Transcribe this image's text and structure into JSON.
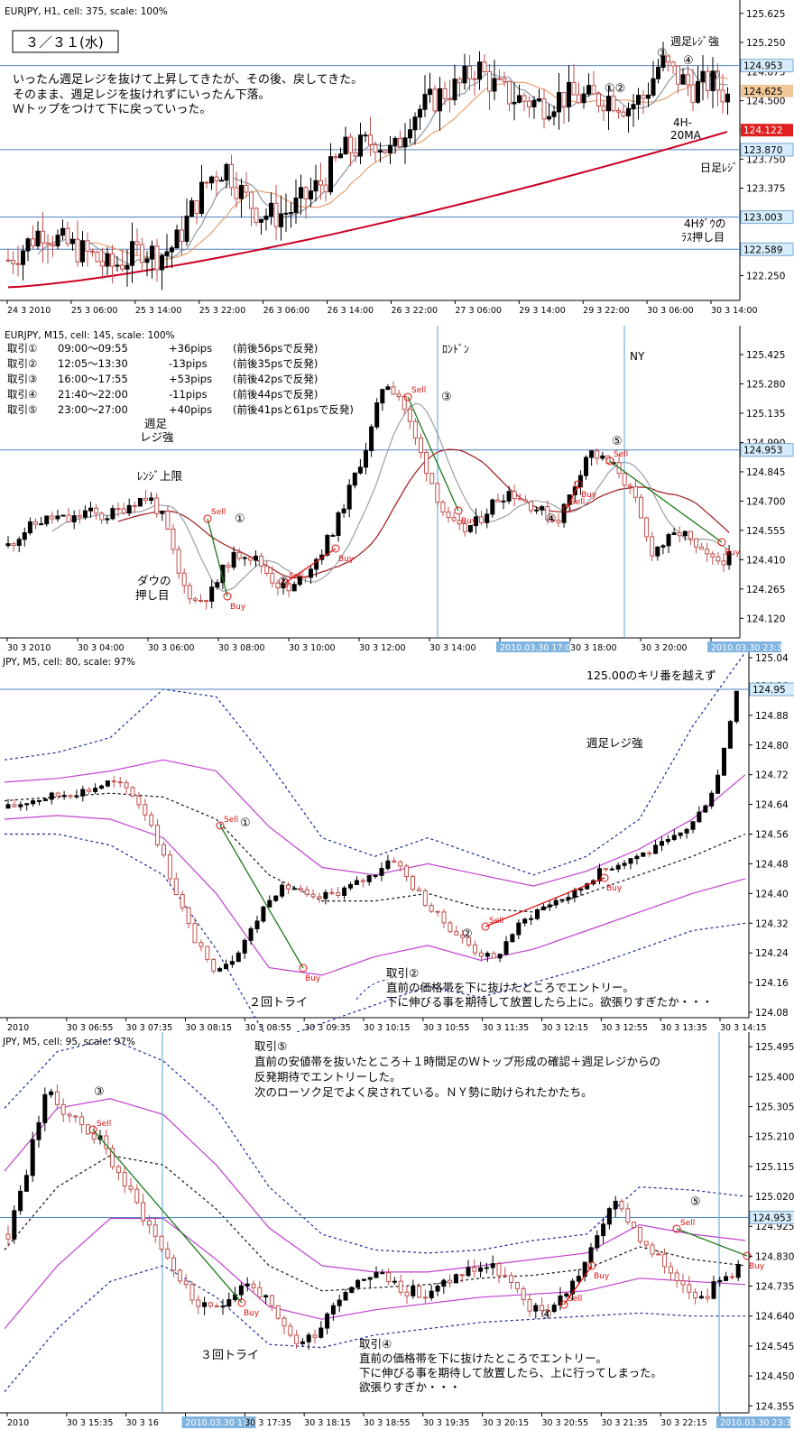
{
  "colors": {
    "bull": "#000000",
    "bear": "#c0504d",
    "bearBody": "#ffffff",
    "hline": "#4f81bd",
    "red_line": "#cc0022",
    "orange_line": "#e8a070",
    "gray_line": "#8a96a8",
    "dark_red": "#a01818",
    "magenta": "#c040d0",
    "navy": "#1a2a9a",
    "black_dash": "#111111",
    "green": "#1b7a1b",
    "trade_red": "#dd1111",
    "axis_hi": "#e02020",
    "axis_blue": "#d6ecfa"
  },
  "charts": [
    {
      "header": "EURJPY, H1, cell: 375, scale: 100%",
      "date_box": "３／３１(水)",
      "notes": [
        "いったん週足レジを抜けて上昇してきたが、その後、戻してきた。",
        "そのまま、週足レジを抜けれずにいったん下落。",
        "Ｗトップをつけて下に戻っていった。"
      ],
      "labels": [
        {
          "t": "週足ﾚｼﾞ強"
        },
        {
          "t": "4H-"
        },
        {
          "t": "20MA"
        },
        {
          "t": "日足ﾚｼﾞ"
        },
        {
          "t": "4Hﾀﾞｳの"
        },
        {
          "t": "ﾗｽ押し目"
        },
        {
          "t": "①②"
        },
        {
          "t": "③"
        },
        {
          "t": "④"
        },
        {
          "t": "⑤"
        }
      ],
      "chart_data": {
        "type": "candlestick",
        "ylim": [
          122.0,
          125.75
        ],
        "y_ticks": [
          "125.625",
          "125.250",
          "124.875",
          "124.500",
          "124.125",
          "123.750",
          "123.375",
          "123.000",
          "122.625",
          "122.250"
        ],
        "x_ticks": [
          "24 3 2010",
          "25 3 06:00",
          "25 3 14:00",
          "25 3 22:00",
          "26 3 06:00",
          "26 3 14:00",
          "26 3 22:00",
          "27 3 06:00",
          "29 3 14:00",
          "29 3 22:00",
          "30 3 06:00",
          "30 3 14:00"
        ],
        "levels": [
          "124.953",
          "123.870",
          "123.003",
          "122.589"
        ],
        "price_tags": [
          "124.625",
          "124.122"
        ],
        "path": [
          122.45,
          122.62,
          122.85,
          122.7,
          122.6,
          122.5,
          122.35,
          122.45,
          122.6,
          122.5,
          122.65,
          123.1,
          123.5,
          123.65,
          123.3,
          123.05,
          123.02,
          123.1,
          123.3,
          123.5,
          123.85,
          123.9,
          124.0,
          123.8,
          124.3,
          124.45,
          124.6,
          124.7,
          124.95,
          124.7,
          124.55,
          124.5,
          124.45,
          124.55,
          124.55,
          124.52,
          124.55,
          124.42,
          124.55,
          125.0,
          124.8,
          124.65,
          124.75,
          124.55
        ]
      }
    },
    {
      "header": "EURJPY, M15, cell: 145, scale: 100%",
      "trades": [
        {
          "name": "取引①",
          "time": "09:00～09:55",
          "pips": "+36pips",
          "note": "(前後56psで反発)"
        },
        {
          "name": "取引②",
          "time": "12:05～13:30",
          "pips": "-13pips",
          "note": "(前後35psで反発)"
        },
        {
          "name": "取引③",
          "time": "16:00～17:55",
          "pips": "+53pips",
          "note": "(前後42psで反発)"
        },
        {
          "name": "取引④",
          "time": "21:40～22:00",
          "pips": "-11pips",
          "note": "(前後44psで反発)"
        },
        {
          "name": "取引⑤",
          "time": "23:00～27:00",
          "pips": "+40pips",
          "note": "(前後41psと61psで反発)"
        }
      ],
      "labels": [
        {
          "t": "ﾛﾝﾄﾞﾝ"
        },
        {
          "t": "NY"
        },
        {
          "t": "週足"
        },
        {
          "t": "レジ強"
        },
        {
          "t": "ﾚﾝｼﾞ上限"
        },
        {
          "t": "ダウの"
        },
        {
          "t": "押し目"
        },
        {
          "t": "①"
        },
        {
          "t": "②"
        },
        {
          "t": "③"
        },
        {
          "t": "④"
        },
        {
          "t": "⑤"
        },
        {
          "t": "Sell"
        },
        {
          "t": "Buy"
        }
      ],
      "chart_data": {
        "type": "candlestick",
        "ylim": [
          124.05,
          125.55
        ],
        "y_ticks": [
          "125.425",
          "125.280",
          "125.135",
          "124.990",
          "124.845",
          "124.700",
          "124.555",
          "124.410",
          "124.265",
          "124.120"
        ],
        "x_ticks": [
          "30 3 2010",
          "30 3 04:00",
          "30 3 06:00",
          "30 3 08:00",
          "30 3 10:00",
          "30 3 12:00",
          "30 3 14:00",
          "2010.03.30 17:00",
          "30 3 18:00",
          "30 3 20:00",
          "2010.03.30 23:30"
        ],
        "levels": [
          "124.953"
        ],
        "path": [
          124.48,
          124.55,
          124.6,
          124.62,
          124.6,
          124.65,
          124.62,
          124.65,
          124.7,
          124.72,
          124.6,
          124.3,
          124.2,
          124.25,
          124.4,
          124.45,
          124.4,
          124.3,
          124.25,
          124.35,
          124.45,
          124.6,
          124.8,
          125.0,
          125.3,
          125.22,
          125.0,
          124.8,
          124.6,
          124.55,
          124.6,
          124.7,
          124.75,
          124.7,
          124.65,
          124.6,
          124.75,
          124.95,
          124.9,
          124.85,
          124.7,
          124.45,
          124.5,
          124.55,
          124.45,
          124.4,
          124.42
        ]
      }
    },
    {
      "header": "JPY, M5, cell: 80, scale: 97%",
      "labels": [
        {
          "t": "125.00のキリ番を越えず"
        },
        {
          "t": "週足レジ強"
        },
        {
          "t": "２回トライ"
        },
        {
          "t": "取引②"
        },
        {
          "t": "直前の価格帯を下に抜けたところでエントリー。"
        },
        {
          "t": "下に伸びる事を期待して放置したら上に。欲張りすぎたか・・・"
        },
        {
          "t": "①"
        },
        {
          "t": "②"
        },
        {
          "t": "Sell"
        },
        {
          "t": "Buy"
        }
      ],
      "chart_data": {
        "type": "candlestick",
        "ylim": [
          124.08,
          125.04
        ],
        "y_ticks": [
          "124.96",
          "124.88",
          "124.80",
          "124.72",
          "124.64",
          "124.56",
          "124.48",
          "124.40",
          "124.32",
          "124.24",
          "124.16",
          "124.08",
          "125.04"
        ],
        "x_ticks": [
          "2010",
          "30 3 06:55",
          "30 3 07:35",
          "30 3 08:15",
          "30 3 08:55",
          "30 3 09:35",
          "30 3 10:15",
          "30 3 10:55",
          "30 3 11:35",
          "30 3 12:15",
          "30 3 12:55",
          "30 3 13:35",
          "30 3 14:15"
        ],
        "levels": [
          "124.95"
        ],
        "path": [
          124.63,
          124.65,
          124.66,
          124.67,
          124.68,
          124.7,
          124.68,
          124.6,
          124.45,
          124.3,
          124.2,
          124.22,
          124.3,
          124.4,
          124.42,
          124.38,
          124.4,
          124.42,
          124.45,
          124.5,
          124.42,
          124.35,
          124.3,
          124.25,
          124.22,
          124.3,
          124.35,
          124.38,
          124.4,
          124.45,
          124.48,
          124.5,
          124.52,
          124.55,
          124.6,
          124.7,
          124.95
        ]
      }
    },
    {
      "header": "JPY, M5, cell: 95, scale: 97%",
      "notes": [
        "取引⑤",
        "直前の安値帯を抜いたところ＋１時間足のＷトップ形成の確認＋週足レジからの",
        "反発期待でエントリーした。",
        "次のローソク足でよく戻されている。ＮＹ勢に助けられたかたち。"
      ],
      "labels": [
        {
          "t": "３回トライ"
        },
        {
          "t": "取引④"
        },
        {
          "t": "直前の価格帯を下に抜けたところでエントリー。"
        },
        {
          "t": "下に伸びる事を期待して放置したら、上に行ってしまった。"
        },
        {
          "t": "欲張りすぎか・・・"
        },
        {
          "t": "③"
        },
        {
          "t": "④"
        },
        {
          "t": "⑤"
        },
        {
          "t": "Sell"
        },
        {
          "t": "Buy"
        }
      ],
      "chart_data": {
        "type": "candlestick",
        "ylim": [
          124.35,
          125.53
        ],
        "y_ticks": [
          "125.495",
          "125.400",
          "125.305",
          "125.210",
          "125.115",
          "125.020",
          "124.925",
          "124.830",
          "124.735",
          "124.640",
          "124.545",
          "124.450",
          "124.355"
        ],
        "x_ticks": [
          "2010",
          "30 3 15:35",
          "30 3 16",
          "2010.03.30 17:00",
          "30 3 17:35",
          "30 3 18:15",
          "30 3 18:55",
          "30 3 19:35",
          "30 3 20:15",
          "30 3 20:55",
          "30 3 21:35",
          "30 3 22:15",
          "2010.03.30 23:30"
        ],
        "levels": [
          "124.953"
        ],
        "path": [
          124.9,
          125.1,
          125.35,
          125.3,
          125.25,
          125.2,
          125.1,
          125.0,
          124.9,
          124.8,
          124.7,
          124.65,
          124.7,
          124.75,
          124.7,
          124.6,
          124.55,
          124.6,
          124.7,
          124.75,
          124.78,
          124.75,
          124.72,
          124.7,
          124.75,
          124.78,
          124.8,
          124.78,
          124.7,
          124.65,
          124.68,
          124.75,
          124.85,
          125.0,
          124.95,
          124.85,
          124.8,
          124.75,
          124.7,
          124.75,
          124.8
        ]
      }
    }
  ]
}
